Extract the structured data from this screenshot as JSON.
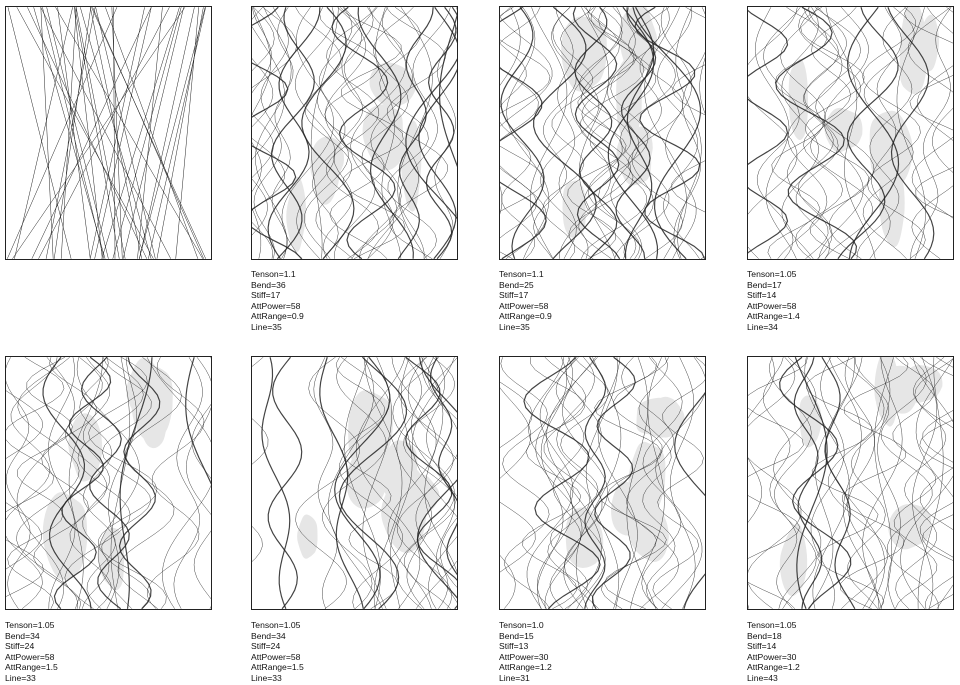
{
  "panels": [
    {
      "style": "straight",
      "params": null
    },
    {
      "style": "wavy",
      "params": {
        "tenson": "Tenson=1.1",
        "bend": "Bend=36",
        "stiff": "Stiff=17",
        "attpower": "AttPower=58",
        "attrange": "AttRange=0.9",
        "line": "Line=35"
      }
    },
    {
      "style": "wavy",
      "params": {
        "tenson": "Tenson=1.1",
        "bend": "Bend=25",
        "stiff": "Stiff=17",
        "attpower": "AttPower=58",
        "attrange": "AttRange=0.9",
        "line": "Line=35"
      }
    },
    {
      "style": "wavy",
      "params": {
        "tenson": "Tenson=1.05",
        "bend": "Bend=17",
        "stiff": "Stiff=14",
        "attpower": "AttPower=58",
        "attrange": "AttRange=1.4",
        "line": "Line=34"
      }
    },
    {
      "style": "wavy",
      "params": {
        "tenson": "Tenson=1.05",
        "bend": "Bend=34",
        "stiff": "Stiff=24",
        "attpower": "AttPower=58",
        "attrange": "AttRange=1.5",
        "line": "Line=33"
      }
    },
    {
      "style": "wavy",
      "params": {
        "tenson": "Tenson=1.05",
        "bend": "Bend=34",
        "stiff": "Stiff=24",
        "attpower": "AttPower=58",
        "attrange": "AttRange=1.5",
        "line": "Line=33"
      }
    },
    {
      "style": "wavy",
      "params": {
        "tenson": "Tenson=1.0",
        "bend": "Bend=15",
        "stiff": "Stiff=13",
        "attpower": "AttPower=30",
        "attrange": "AttRange=1.2",
        "line": "Line=31"
      }
    },
    {
      "style": "wavy",
      "params": {
        "tenson": "Tenson=1.05",
        "bend": "Bend=18",
        "stiff": "Stiff=14",
        "attpower": "AttPower=30",
        "attrange": "AttRange=1.2",
        "line": "Line=43"
      }
    }
  ],
  "colors": {
    "line": "#222222",
    "blob": "#e6e6e6",
    "frame": "#222222"
  }
}
